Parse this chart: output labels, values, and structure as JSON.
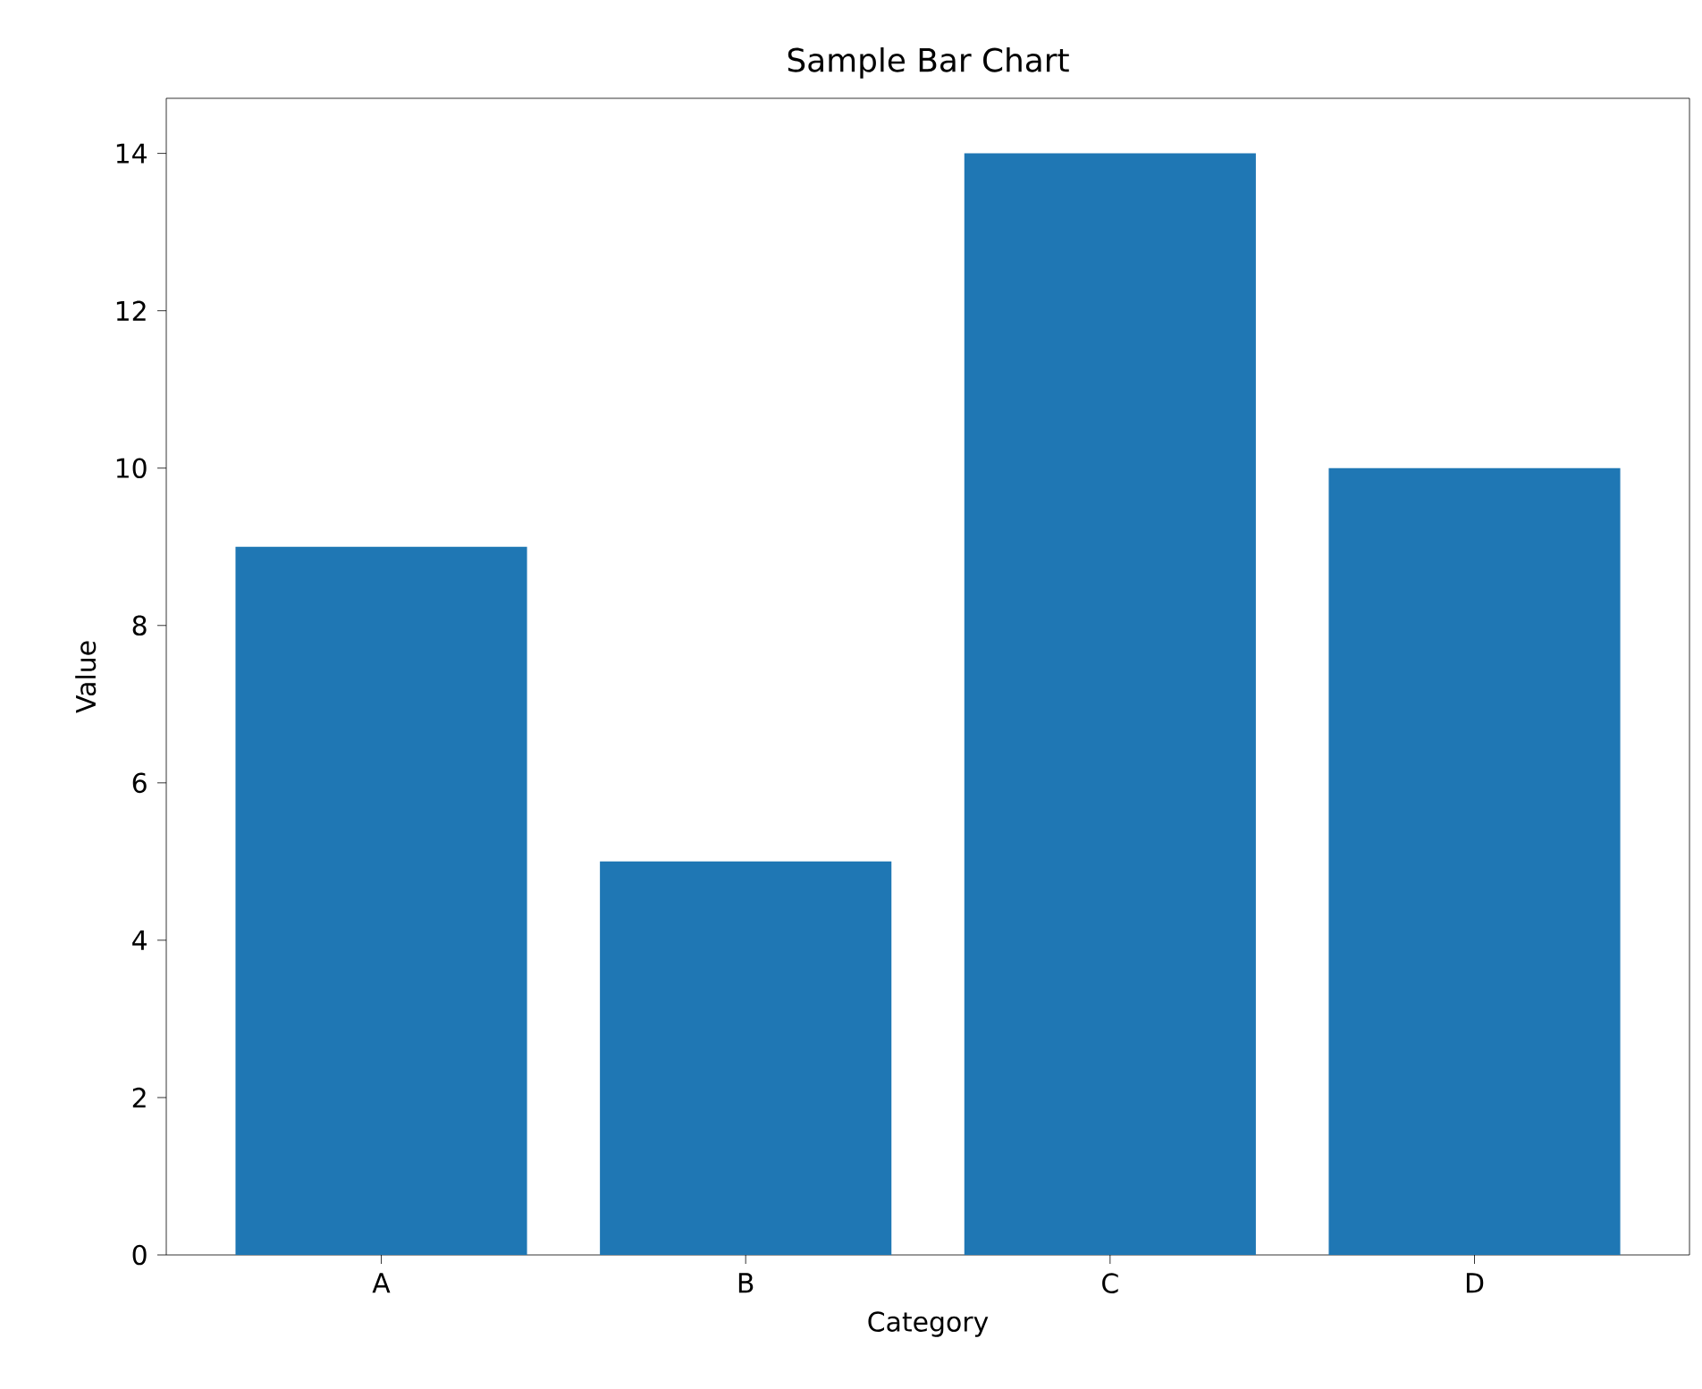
{
  "chart_data": {
    "type": "bar",
    "title": "Sample Bar Chart",
    "xlabel": "Category",
    "ylabel": "Value",
    "categories": [
      "A",
      "B",
      "C",
      "D"
    ],
    "values": [
      9,
      5,
      14,
      10
    ],
    "color": "#1f77b4",
    "ylim": [
      0,
      14.7
    ],
    "yticks": [
      0,
      2,
      4,
      6,
      8,
      10,
      12,
      14
    ],
    "grid": false
  }
}
